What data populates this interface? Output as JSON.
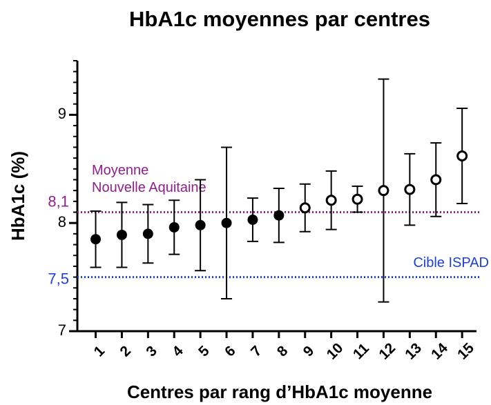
{
  "chart_data": {
    "type": "errorbar",
    "title": "HbA1c moyennes par centres",
    "x_label": "Centres par rang d’HbA1c moyenne",
    "y_label": "HbA1c (%)",
    "categories": [
      "1",
      "2",
      "3",
      "4",
      "5",
      "6",
      "7",
      "8",
      "9",
      "10",
      "11",
      "12",
      "13",
      "14",
      "15"
    ],
    "xticks": [
      1,
      2,
      3,
      4,
      5,
      6,
      7,
      8,
      9,
      10,
      11,
      12,
      13,
      14,
      15
    ],
    "xlim": [
      0.3,
      15.55
    ],
    "ylim": [
      7,
      9.5
    ],
    "yticks": [
      7,
      8,
      9
    ],
    "yminor": 0.1,
    "color": "#000000",
    "series": [
      {
        "marker": "filled",
        "x": [
          1,
          2,
          3,
          4,
          5,
          6,
          7,
          8
        ],
        "values": [
          7.85,
          7.89,
          7.9,
          7.96,
          7.98,
          8.0,
          8.03,
          8.07
        ],
        "errors": [
          0.26,
          0.3,
          0.27,
          0.25,
          0.42,
          0.7,
          0.2,
          0.25
        ]
      },
      {
        "marker": "open",
        "x": [
          9,
          10,
          11,
          12,
          13,
          14,
          15
        ],
        "values": [
          8.14,
          8.21,
          8.22,
          8.3,
          8.31,
          8.4,
          8.62
        ],
        "errors": [
          0.22,
          0.27,
          0.12,
          1.03,
          0.33,
          0.34,
          0.44
        ]
      }
    ],
    "reference_lines": [
      {
        "value": 8.1,
        "label": "8,1",
        "text": [
          "Moyenne",
          "Nouvelle Aquitaine"
        ],
        "color": "#8e1f8c"
      },
      {
        "value": 7.5,
        "label": "7,5",
        "text": [
          "Cible ISPAD"
        ],
        "color": "#1d3fe0"
      }
    ]
  }
}
